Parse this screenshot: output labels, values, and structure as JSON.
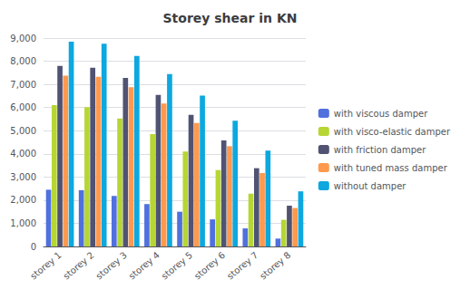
{
  "chart_data": {
    "type": "bar",
    "title": "Storey shear in KN",
    "categories": [
      "storey 1",
      "storey 2",
      "storey 3",
      "storey 4",
      "storey 5",
      "storey 6",
      "storey 7",
      "storey 8"
    ],
    "series": [
      {
        "name": "with viscous damper",
        "values": [
          2450,
          2430,
          2180,
          1830,
          1500,
          1170,
          780,
          340
        ]
      },
      {
        "name": "with visco-elastic damper",
        "values": [
          6100,
          6020,
          5530,
          4850,
          4100,
          3300,
          2280,
          1150
        ]
      },
      {
        "name": "with friction damper",
        "values": [
          7800,
          7720,
          7280,
          6540,
          5680,
          4580,
          3380,
          1760
        ]
      },
      {
        "name": "with tuned mass damper",
        "values": [
          7380,
          7330,
          6880,
          6170,
          5330,
          4330,
          3170,
          1660
        ]
      },
      {
        "name": "without damper",
        "values": [
          8840,
          8760,
          8230,
          7440,
          6520,
          5430,
          4140,
          2380
        ]
      }
    ],
    "ylim": [
      0,
      9000
    ],
    "yticks": [
      0,
      1000,
      2000,
      3000,
      4000,
      5000,
      6000,
      7000,
      8000,
      9000
    ],
    "grid": true,
    "legend": "right"
  }
}
